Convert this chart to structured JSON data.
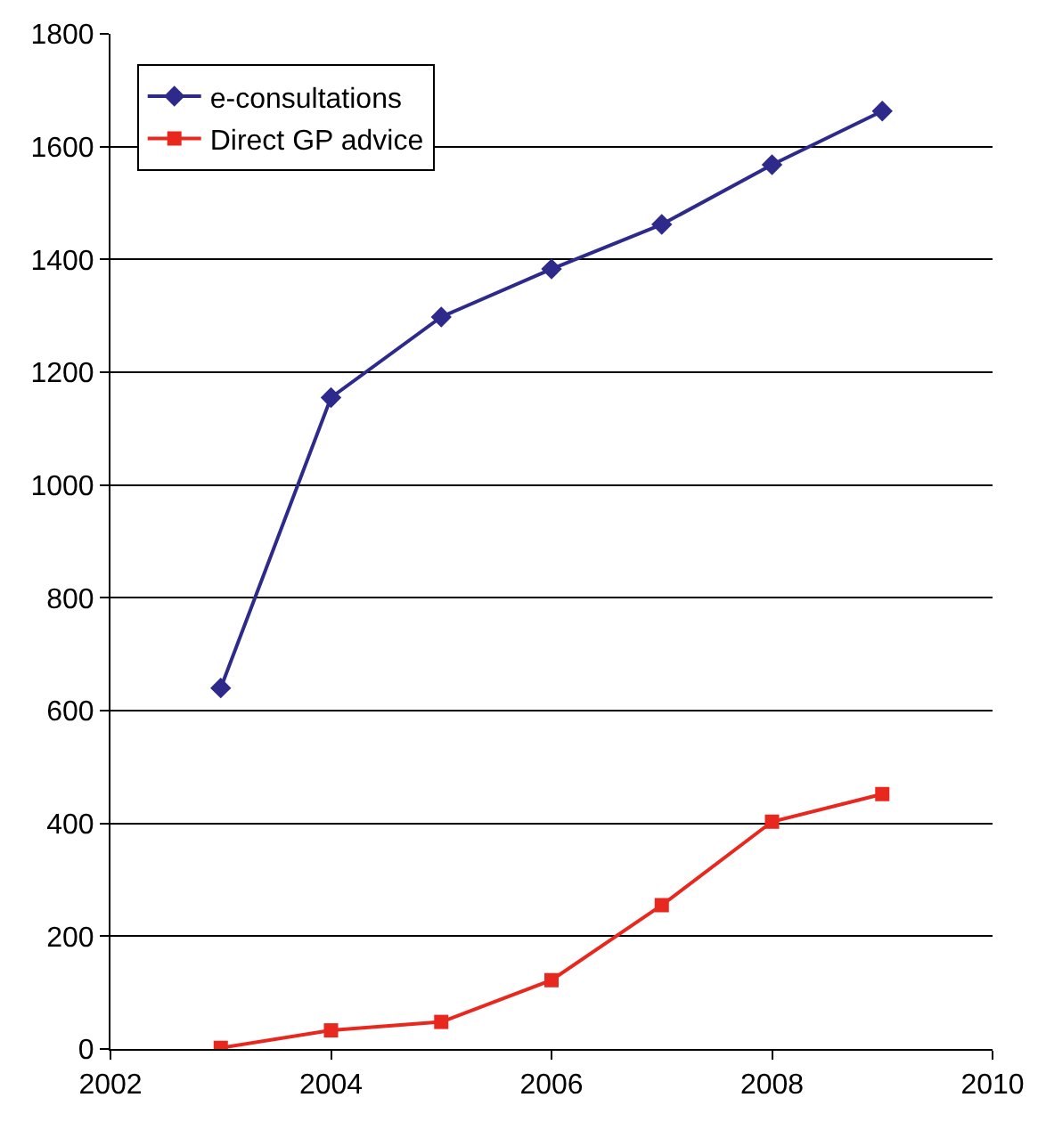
{
  "chart_data": {
    "type": "line",
    "x": [
      2003,
      2004,
      2005,
      2006,
      2007,
      2008,
      2009
    ],
    "series": [
      {
        "name": "e-consultations",
        "color": "#2e2a8c",
        "marker": "diamond",
        "values": [
          640,
          1155,
          1298,
          1383,
          1462,
          1568,
          1663
        ]
      },
      {
        "name": "Direct GP advice",
        "color": "#e8281e",
        "marker": "square",
        "values": [
          2,
          33,
          48,
          122,
          255,
          403,
          452
        ]
      }
    ],
    "xlim": [
      2002,
      2010
    ],
    "xticks": [
      2002,
      2004,
      2006,
      2008,
      2010
    ],
    "ylim": [
      0,
      1800
    ],
    "yticks": [
      0,
      200,
      400,
      600,
      800,
      1000,
      1200,
      1400,
      1600,
      1800
    ],
    "grid": "y",
    "legend": "top left",
    "line_style": "solid"
  }
}
